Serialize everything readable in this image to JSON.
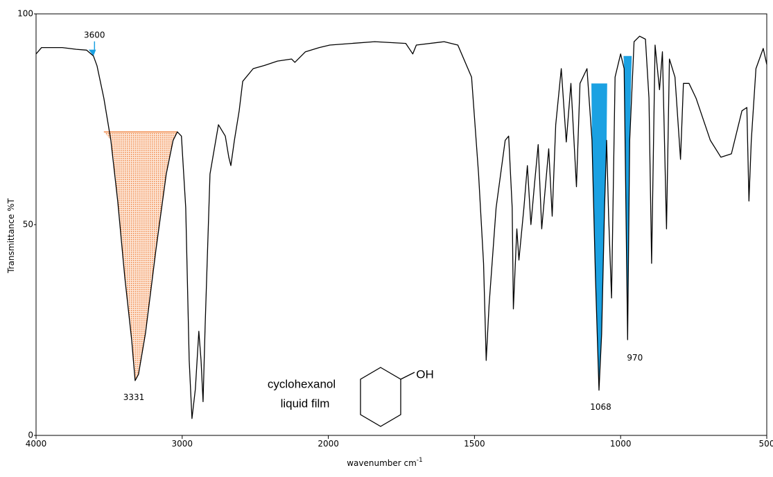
{
  "chart_data": {
    "type": "line",
    "y_label": "Transmittance %T",
    "x_label": "wavenumber cm",
    "x_label_sup": "-1",
    "color": "#000000",
    "xticks": [
      4000,
      3000,
      2000,
      1500,
      1000,
      500
    ],
    "yticks": [
      0,
      50,
      100
    ],
    "xlim": [
      4000,
      500
    ],
    "ylim": [
      0,
      100
    ],
    "x": [
      4000,
      3962,
      3820,
      3725,
      3654,
      3607,
      3583,
      3536,
      3488,
      3441,
      3393,
      3346,
      3322,
      3299,
      3251,
      3180,
      3109,
      3062,
      3033,
      3005,
      2976,
      2952,
      2933,
      2910,
      2886,
      2871,
      2857,
      2843,
      2810,
      2752,
      2705,
      2681,
      2667,
      2643,
      2610,
      2586,
      2514,
      2443,
      2348,
      2252,
      2229,
      2157,
      2062,
      1995,
      1841,
      1735,
      1711,
      1699,
      1604,
      1557,
      1510,
      1486,
      1469,
      1460,
      1450,
      1426,
      1395,
      1383,
      1371,
      1367,
      1355,
      1348,
      1331,
      1319,
      1307,
      1294,
      1282,
      1270,
      1246,
      1234,
      1222,
      1203,
      1186,
      1170,
      1151,
      1139,
      1115,
      1098,
      1086,
      1074,
      1065,
      1055,
      1048,
      1041,
      1031,
      1019,
      1000,
      988,
      976,
      969,
      954,
      935,
      915,
      903,
      894,
      882,
      867,
      857,
      843,
      833,
      814,
      795,
      785,
      766,
      742,
      693,
      657,
      621,
      585,
      568,
      561,
      553,
      537,
      512,
      500
    ],
    "values": [
      90.5,
      92,
      92,
      91.6,
      91.4,
      90,
      87.7,
      80,
      70,
      55.6,
      37.5,
      22.7,
      13,
      14.5,
      24.3,
      44,
      62,
      70,
      72,
      71,
      54,
      17.8,
      4,
      11,
      24.7,
      17.8,
      8,
      26,
      62,
      73.7,
      71,
      66,
      64,
      70,
      77,
      84,
      87,
      87.7,
      88.8,
      89.3,
      88.5,
      91,
      92,
      92.6,
      93.4,
      93,
      90.5,
      92.6,
      93.4,
      92.6,
      85,
      62,
      40.8,
      17.8,
      31,
      54,
      70,
      71,
      54,
      30,
      49,
      41.6,
      54,
      64,
      50,
      60,
      69,
      49,
      68,
      52,
      73.7,
      87,
      69.6,
      83.5,
      59,
      83.5,
      87,
      70,
      37.5,
      10.7,
      24,
      54,
      70,
      52,
      32.6,
      85,
      90.5,
      87,
      22.7,
      70,
      93.4,
      94.7,
      94,
      80,
      40.8,
      92.6,
      82,
      91,
      49,
      89.3,
      85,
      65.5,
      83.5,
      83.5,
      80,
      70,
      66,
      66.8,
      77,
      77.8,
      55.6,
      70,
      87,
      91.8,
      88
    ],
    "peaks": [
      {
        "x": 3600,
        "from": 3640,
        "to": 3590,
        "level": 91.5,
        "color": "#1ba1e2",
        "label_side": "above"
      },
      {
        "x": 3331,
        "from": 3536,
        "to": 3033,
        "level": 72,
        "color": "#f08a4b",
        "label_side": "below"
      },
      {
        "x": 1068,
        "from": 1100,
        "to": 1046,
        "level": 83.5,
        "color": "#1ba1e2",
        "label_side": "below"
      },
      {
        "x": 970,
        "from": 990,
        "to": 962,
        "level": 90,
        "color": "#1ba1e2",
        "label_side": "below"
      }
    ],
    "annotations": {
      "compound": "cyclohexanol",
      "sample": "liquid film",
      "group": "OH"
    }
  }
}
